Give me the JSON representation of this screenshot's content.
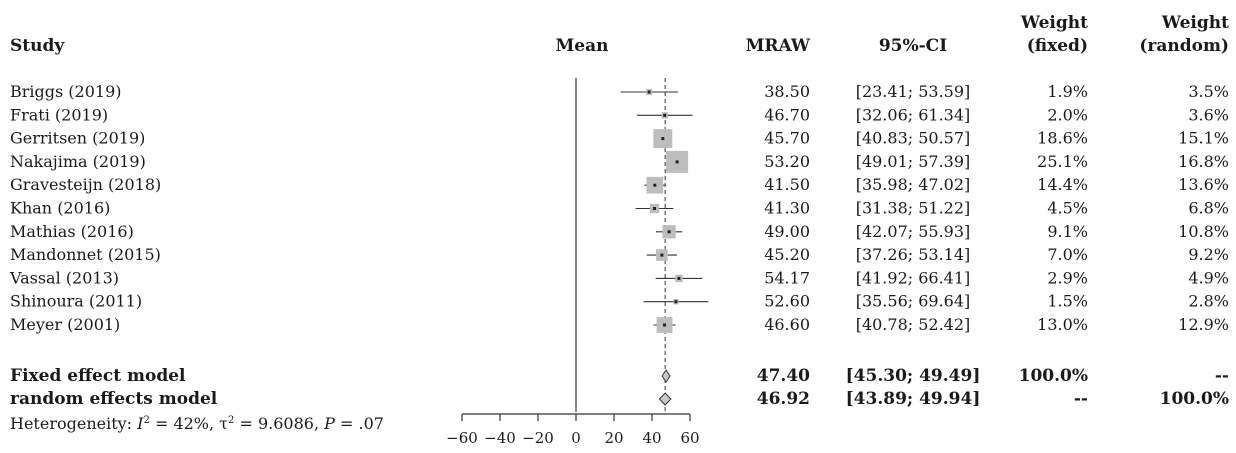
{
  "chart_data": {
    "type": "forest",
    "headers": {
      "study": "Study",
      "mean": "Mean",
      "mraw": "MRAW",
      "ci": "95%-CI",
      "wfixed_line1": "Weight",
      "wfixed_line2": "(fixed)",
      "wrandom_line1": "Weight",
      "wrandom_line2": "(random)"
    },
    "studies": [
      {
        "name": "Briggs (2019)",
        "mraw": "38.50",
        "ci": "[23.41; 53.59]",
        "wfixed": "1.9%",
        "wrandom": "3.5%",
        "mean": 38.5,
        "lo": 23.41,
        "hi": 53.59,
        "w": 1.9
      },
      {
        "name": "Frati (2019)",
        "mraw": "46.70",
        "ci": "[32.06; 61.34]",
        "wfixed": "2.0%",
        "wrandom": "3.6%",
        "mean": 46.7,
        "lo": 32.06,
        "hi": 61.34,
        "w": 2.0
      },
      {
        "name": "Gerritsen (2019)",
        "mraw": "45.70",
        "ci": "[40.83; 50.57]",
        "wfixed": "18.6%",
        "wrandom": "15.1%",
        "mean": 45.7,
        "lo": 40.83,
        "hi": 50.57,
        "w": 18.6
      },
      {
        "name": "Nakajima (2019)",
        "mraw": "53.20",
        "ci": "[49.01; 57.39]",
        "wfixed": "25.1%",
        "wrandom": "16.8%",
        "mean": 53.2,
        "lo": 49.01,
        "hi": 57.39,
        "w": 25.1
      },
      {
        "name": "Gravesteijn (2018)",
        "mraw": "41.50",
        "ci": "[35.98; 47.02]",
        "wfixed": "14.4%",
        "wrandom": "13.6%",
        "mean": 41.5,
        "lo": 35.98,
        "hi": 47.02,
        "w": 14.4
      },
      {
        "name": "Khan (2016)",
        "mraw": "41.30",
        "ci": "[31.38; 51.22]",
        "wfixed": "4.5%",
        "wrandom": "6.8%",
        "mean": 41.3,
        "lo": 31.38,
        "hi": 51.22,
        "w": 4.5
      },
      {
        "name": "Mathias (2016)",
        "mraw": "49.00",
        "ci": "[42.07; 55.93]",
        "wfixed": "9.1%",
        "wrandom": "10.8%",
        "mean": 49.0,
        "lo": 42.07,
        "hi": 55.93,
        "w": 9.1
      },
      {
        "name": "Mandonnet (2015)",
        "mraw": "45.20",
        "ci": "[37.26; 53.14]",
        "wfixed": "7.0%",
        "wrandom": "9.2%",
        "mean": 45.2,
        "lo": 37.26,
        "hi": 53.14,
        "w": 7.0
      },
      {
        "name": "Vassal (2013)",
        "mraw": "54.17",
        "ci": "[41.92; 66.41]",
        "wfixed": "2.9%",
        "wrandom": "4.9%",
        "mean": 54.17,
        "lo": 41.92,
        "hi": 66.41,
        "w": 2.9
      },
      {
        "name": "Shinoura (2011)",
        "mraw": "52.60",
        "ci": "[35.56; 69.64]",
        "wfixed": "1.5%",
        "wrandom": "2.8%",
        "mean": 52.6,
        "lo": 35.56,
        "hi": 69.64,
        "w": 1.5
      },
      {
        "name": "Meyer (2001)",
        "mraw": "46.60",
        "ci": "[40.78; 52.42]",
        "wfixed": "13.0%",
        "wrandom": "12.9%",
        "mean": 46.6,
        "lo": 40.78,
        "hi": 52.42,
        "w": 13.0
      }
    ],
    "summary": [
      {
        "name": "Fixed effect model",
        "mraw": "47.40",
        "ci": "[45.30; 49.49]",
        "wfixed": "100.0%",
        "wrandom": "--",
        "mean": 47.4,
        "lo": 45.3,
        "hi": 49.49
      },
      {
        "name": "random effects model",
        "mraw": "46.92",
        "ci": "[43.89; 49.94]",
        "wfixed": "--",
        "wrandom": "100.0%",
        "mean": 46.92,
        "lo": 43.89,
        "hi": 49.94
      }
    ],
    "heterogeneity": {
      "label": "Heterogeneity: ",
      "i2_text": "I",
      "i2_sup": "2",
      "i2_val": " = 42%, τ",
      "tau_sup": "2",
      "tau_val": " = 9.6086, ",
      "p_text": "P",
      "p_val": " = .07"
    },
    "x_ticks": [
      "−60",
      "−40",
      "−20",
      "0",
      "20",
      "40",
      "60"
    ],
    "x_tick_values": [
      -60,
      -40,
      -20,
      0,
      20,
      40,
      60
    ],
    "xlim": [
      -60,
      60
    ],
    "reference_line": 0,
    "summary_line": 46.92
  }
}
